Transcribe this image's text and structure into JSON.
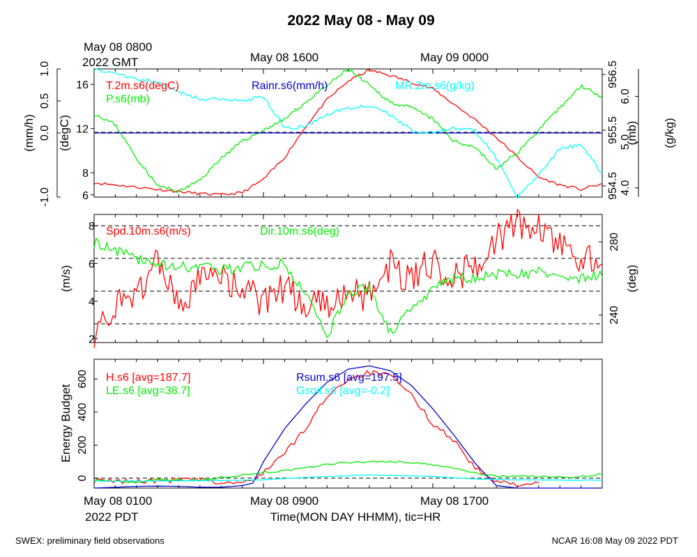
{
  "title": "2022 May 08 - May 09",
  "top_time": {
    "start_line1": "May 08 0800",
    "start_line2": "2022 GMT",
    "ticks": [
      "May 08 1600",
      "May 09 0000"
    ]
  },
  "bottom_time": {
    "start_line1": "May 08 0100",
    "start_line2": "2022 PDT",
    "ticks": [
      "May 08 0900",
      "May 08 1700"
    ],
    "xlabel": "Time(MON DAY HHMM), tic=HR"
  },
  "footer": {
    "left": "SWEX: preliminary field observations",
    "right": "NCAR 16:08 May 09 2022 PDT"
  },
  "colors": {
    "red": "#ff0000",
    "green": "#00ee00",
    "blue": "#0000cc",
    "cyan": "#00ffff",
    "black": "#000000"
  },
  "chart_data": [
    {
      "type": "line",
      "id": "met",
      "x_hours": [
        0,
        24
      ],
      "axes": {
        "rain": {
          "label": "(mm/h)",
          "range": [
            -1.0,
            1.0
          ],
          "ticks": [
            "-1.0",
            "0.0",
            "0.5",
            "1.0"
          ],
          "tick_values": [
            -1.0,
            0.0,
            0.5,
            1.0
          ]
        },
        "temp": {
          "label": "(degC)",
          "range": [
            5.8,
            17.4
          ],
          "ticks": [
            "6",
            "8",
            "12",
            "16"
          ],
          "tick_values": [
            6,
            8,
            12,
            16
          ]
        },
        "pres": {
          "label": "(mb)",
          "range": [
            954.3,
            956.6
          ],
          "ticks": [
            "954.5",
            "955.5",
            "956.5"
          ],
          "tick_values": [
            954.5,
            955.5,
            956.5
          ]
        },
        "mr": {
          "label": "(g/kg)",
          "range": [
            3.8,
            6.6
          ],
          "ticks": [
            "4.0",
            "5.0",
            "6.0"
          ],
          "tick_values": [
            4.0,
            5.0,
            6.0
          ]
        }
      },
      "series": [
        {
          "name": "T.2m.s6(degC)",
          "color": "#ff0000",
          "axis": "temp",
          "x": [
            0,
            1,
            2,
            3,
            4,
            5,
            6,
            7,
            8,
            9,
            10,
            11,
            12,
            13,
            14,
            15,
            16,
            17,
            18,
            19,
            20,
            21,
            22,
            23,
            24
          ],
          "values": [
            7.1,
            6.9,
            6.7,
            6.5,
            6.3,
            6.1,
            6.0,
            6.2,
            7.4,
            9.4,
            12.2,
            14.6,
            16.3,
            17.3,
            16.8,
            16.2,
            15.6,
            14.2,
            12.8,
            11.2,
            9.4,
            7.6,
            6.9,
            6.5,
            7.0
          ]
        },
        {
          "name": "P.s6(mb)",
          "color": "#00ee00",
          "axis": "pres",
          "x": [
            0,
            1,
            2,
            3,
            4,
            5,
            6,
            7,
            8,
            9,
            10,
            11,
            12,
            13,
            14,
            15,
            16,
            17,
            18,
            19,
            20,
            21,
            22,
            23,
            24
          ],
          "values": [
            955.8,
            955.6,
            955.0,
            954.5,
            954.4,
            954.6,
            955.0,
            955.3,
            955.5,
            955.7,
            956.0,
            956.3,
            956.6,
            956.3,
            956.0,
            955.9,
            955.7,
            955.3,
            955.2,
            954.8,
            955.1,
            955.5,
            955.9,
            956.3,
            956.1
          ]
        },
        {
          "name": "Rainr.s6(mm/h)",
          "color": "#0000cc",
          "axis": "rain",
          "x": [
            0,
            24
          ],
          "values": [
            0.0,
            0.0
          ]
        },
        {
          "name": "MR.2m.s6(g/kg)",
          "color": "#00ffff",
          "axis": "mr",
          "x": [
            0,
            1,
            2,
            3,
            4,
            5,
            6,
            7,
            8,
            9,
            10,
            11,
            12,
            13,
            14,
            15,
            16,
            17,
            18,
            19,
            20,
            21,
            22,
            23,
            24
          ],
          "values": [
            6.6,
            6.5,
            6.4,
            6.3,
            6.1,
            5.95,
            5.95,
            5.9,
            6.0,
            5.3,
            5.35,
            5.6,
            5.75,
            5.8,
            5.6,
            5.25,
            5.2,
            5.3,
            5.25,
            4.65,
            3.8,
            4.3,
            4.85,
            4.95,
            4.3
          ]
        }
      ]
    },
    {
      "type": "line",
      "id": "wind",
      "x_hours": [
        0,
        24
      ],
      "axes": {
        "spd": {
          "label": "(m/s)",
          "range": [
            1.8,
            8.6
          ],
          "ticks": [
            "2",
            "4",
            "6",
            "8"
          ],
          "tick_values": [
            2,
            4,
            6,
            8
          ]
        },
        "dir": {
          "label": "(deg)",
          "range": [
            225,
            295
          ],
          "ticks": [
            "240",
            "280"
          ],
          "tick_values": [
            240,
            280
          ]
        }
      },
      "grid_spd": [
        8,
        6.27,
        4.53,
        2.8
      ],
      "series": [
        {
          "name": "Spd.10m.s6(m/s)",
          "color": "#ff0000",
          "axis": "spd",
          "x": [
            0,
            1,
            2,
            3,
            4,
            5,
            6,
            7,
            8,
            9,
            10,
            11,
            12,
            13,
            14,
            15,
            16,
            17,
            18,
            19,
            20,
            21,
            22,
            23,
            24
          ],
          "values": [
            2.4,
            3.6,
            4.3,
            6.4,
            3.5,
            5.0,
            5.4,
            4.6,
            3.9,
            4.7,
            3.8,
            3.7,
            4.6,
            4.2,
            6.0,
            5.0,
            6.2,
            5.3,
            5.8,
            7.3,
            8.1,
            7.8,
            6.9,
            6.3,
            5.8
          ]
        },
        {
          "name": "Dir.10m.s6(deg)",
          "color": "#00ee00",
          "axis": "dir",
          "x": [
            0,
            1,
            2,
            3,
            4,
            5,
            6,
            7,
            8,
            9,
            10,
            11,
            12,
            13,
            14,
            15,
            16,
            17,
            18,
            19,
            20,
            21,
            22,
            23,
            24
          ],
          "values": [
            280,
            275,
            271,
            268,
            266,
            267,
            265,
            266,
            267,
            268,
            251,
            229,
            251,
            256,
            230,
            243,
            255,
            260,
            261,
            262,
            262,
            264,
            261,
            260,
            263
          ]
        }
      ]
    },
    {
      "type": "line",
      "id": "energy",
      "x_hours": [
        0,
        24
      ],
      "ylabel": "Energy Budget",
      "ylim": [
        -60,
        720
      ],
      "ticks": [
        "0",
        "200",
        "400",
        "600"
      ],
      "tick_values": [
        0,
        200,
        400,
        600
      ],
      "series": [
        {
          "name": "H.s6 [avg=187.7]",
          "color": "#ff0000",
          "x": [
            0,
            1,
            2,
            3,
            4,
            5,
            6,
            7,
            7.5,
            8,
            9,
            10,
            11,
            12,
            13,
            14,
            15,
            16,
            17,
            18,
            19,
            19.5,
            20,
            21
          ],
          "values": [
            -15,
            -20,
            -18,
            -16,
            -10,
            -12,
            -30,
            -25,
            -20,
            40,
            150,
            300,
            500,
            600,
            640,
            620,
            500,
            330,
            230,
            60,
            -25,
            -30,
            -35,
            -35
          ]
        },
        {
          "name": "LE.s6 [avg=38.7]",
          "color": "#00ee00",
          "x": [
            0,
            1,
            2,
            3,
            4,
            5,
            6,
            7,
            8,
            9,
            10,
            11,
            12,
            13,
            14,
            15,
            16,
            17,
            18,
            19,
            20,
            21,
            22,
            23,
            24
          ],
          "values": [
            -10,
            -20,
            -25,
            -5,
            -10,
            -15,
            5,
            20,
            35,
            45,
            60,
            85,
            95,
            100,
            100,
            95,
            80,
            60,
            30,
            10,
            15,
            10,
            5,
            10,
            25
          ]
        },
        {
          "name": "Rsum.s6 [avg=197.5]",
          "color": "#0000cc",
          "x": [
            0,
            1,
            2,
            3,
            4,
            5,
            6,
            7,
            7.5,
            8,
            9,
            10,
            11,
            12,
            13,
            14,
            15,
            16,
            17,
            18,
            19,
            20,
            21,
            22,
            23,
            24
          ],
          "values": [
            -60,
            -55,
            -50,
            -48,
            -50,
            -55,
            -55,
            -45,
            -30,
            100,
            300,
            450,
            580,
            660,
            680,
            650,
            560,
            420,
            260,
            90,
            -45,
            -60,
            -60,
            -60,
            -60,
            -60
          ]
        },
        {
          "name": "Gsoil.s6 [avg=-0.2]",
          "color": "#00ffff",
          "x": [
            0,
            2,
            4,
            6,
            7,
            8,
            10,
            12,
            13,
            14,
            16,
            18,
            20,
            22,
            24
          ],
          "values": [
            -18,
            -18,
            -16,
            -14,
            -12,
            -10,
            5,
            15,
            20,
            18,
            10,
            -5,
            -10,
            -12,
            -12
          ]
        }
      ],
      "baseline": 0
    }
  ]
}
